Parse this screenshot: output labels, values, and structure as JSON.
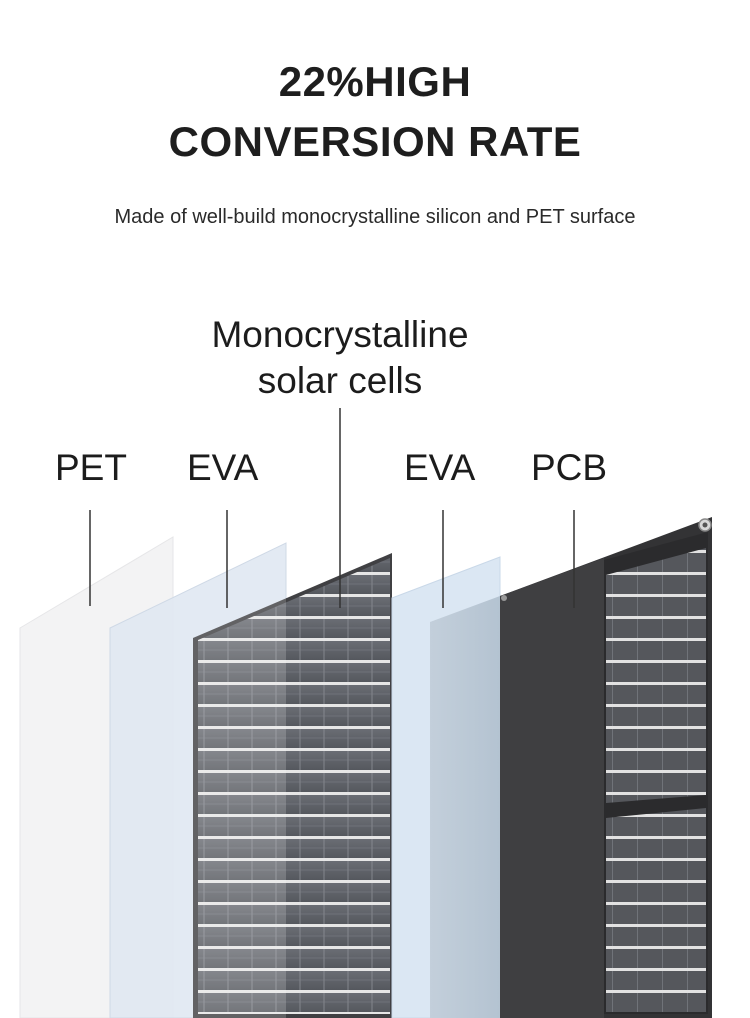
{
  "header": {
    "title_line1": "22%HIGH",
    "title_line2": "CONVERSION RATE",
    "subtitle": "Made of well-build monocrystalline silicon and PET surface"
  },
  "diagram": {
    "cells_label_line1": "Monocrystalline",
    "cells_label_line2": "solar cells",
    "layers": [
      {
        "id": "pet",
        "label": "PET"
      },
      {
        "id": "eva1",
        "label": "EVA"
      },
      {
        "id": "cells",
        "label": "Monocrystalline solar cells"
      },
      {
        "id": "eva2",
        "label": "EVA"
      },
      {
        "id": "pcb",
        "label": "PCB"
      }
    ]
  },
  "colors": {
    "pet": "#f2f2f3",
    "eva1": "#e1e9f3",
    "cells_frame": "#3a3a3c",
    "eva2": "#d9e6f2",
    "pcb": "#3d3d3e",
    "cell_white": "#e8e8e8"
  }
}
